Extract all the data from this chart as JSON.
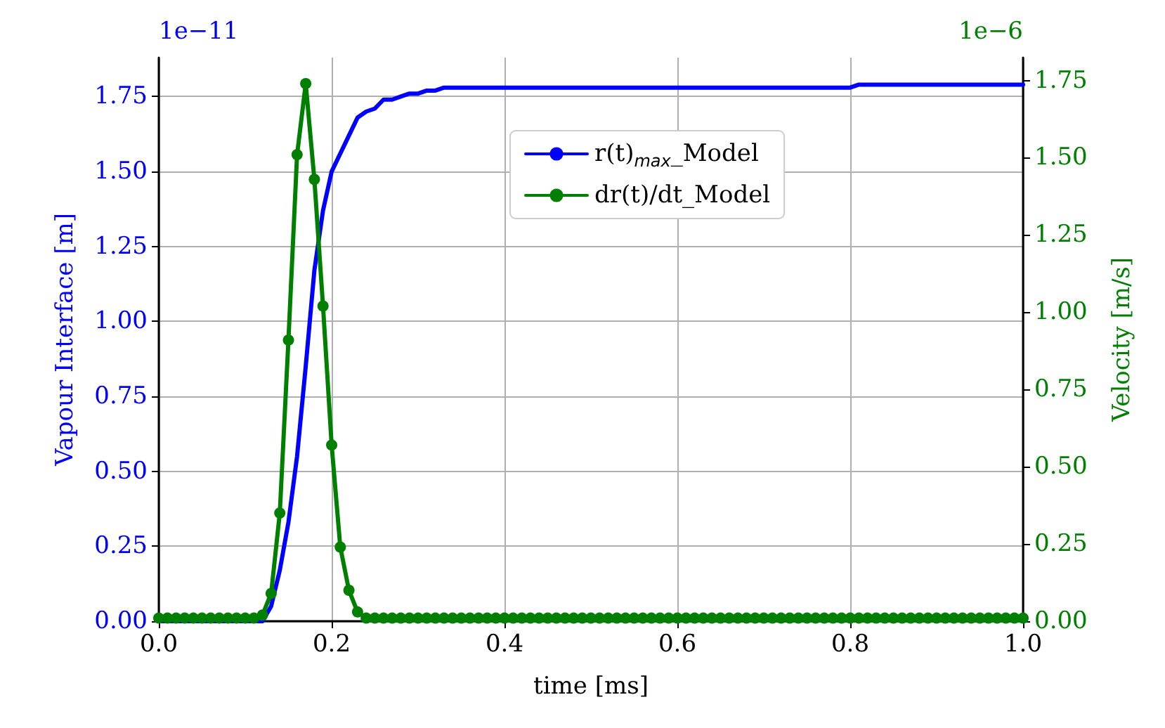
{
  "chart_data": {
    "type": "line",
    "xlabel": "time [ms]",
    "ylabel": "Vapour Interface [m]",
    "y2label": "Velocity [m/s]",
    "annotations": [
      "1e−11",
      "1e−6"
    ],
    "xlim": [
      0,
      1
    ],
    "xticks": [
      {
        "value": 0,
        "label": "0.0"
      },
      {
        "value": 0.2,
        "label": "0.2"
      },
      {
        "value": 0.4,
        "label": "0.4"
      },
      {
        "value": 0.6,
        "label": "0.6"
      },
      {
        "value": 0.8,
        "label": "0.8"
      },
      {
        "value": 1,
        "label": "1.0"
      }
    ],
    "ylim": [
      0,
      1.88
    ],
    "yticks": [
      {
        "value": 0,
        "label": "0.00"
      },
      {
        "value": 0.25,
        "label": "0.25"
      },
      {
        "value": 0.5,
        "label": "0.50"
      },
      {
        "value": 0.75,
        "label": "0.75"
      },
      {
        "value": 1,
        "label": "1.00"
      },
      {
        "value": 1.25,
        "label": "1.25"
      },
      {
        "value": 1.5,
        "label": "1.50"
      },
      {
        "value": 1.75,
        "label": "1.75"
      }
    ],
    "y2lim": [
      0,
      1.824
    ],
    "y2ticks": [
      {
        "value": 0,
        "label": "0.00"
      },
      {
        "value": 0.25,
        "label": "0.25"
      },
      {
        "value": 0.5,
        "label": "0.50"
      },
      {
        "value": 0.75,
        "label": "0.75"
      },
      {
        "value": 1,
        "label": "1.00"
      },
      {
        "value": 1.25,
        "label": "1.25"
      },
      {
        "value": 1.5,
        "label": "1.50"
      },
      {
        "value": 1.75,
        "label": "1.75"
      }
    ],
    "grid": true,
    "legend": "top",
    "line_style": "solid",
    "series": [
      {
        "name": "r(t)$_{max}$_Model",
        "color": "#0000ff",
        "marker": "none",
        "x": [
          0,
          0.12,
          0.13,
          0.14,
          0.15,
          0.16,
          0.17,
          0.18,
          0.19,
          0.2,
          0.21,
          0.22,
          0.23,
          0.24,
          0.25,
          0.26,
          0.27,
          0.28,
          0.29,
          0.3,
          0.31,
          0.32,
          0.33,
          0.8,
          0.81,
          1
        ],
        "values": [
          0,
          0,
          0.05,
          0.17,
          0.33,
          0.55,
          0.85,
          1.17,
          1.37,
          1.5,
          1.56,
          1.62,
          1.68,
          1.7,
          1.71,
          1.74,
          1.74,
          1.75,
          1.76,
          1.76,
          1.77,
          1.77,
          1.78,
          1.78,
          1.79,
          1.79
        ]
      },
      {
        "name": "dr(t)/dt_Model",
        "color": "#008000",
        "marker": "circle",
        "axis": "y2",
        "x": [
          0,
          0.01,
          0.02,
          0.03,
          0.04,
          0.05,
          0.06,
          0.07,
          0.08,
          0.09,
          0.1,
          0.11,
          0.12,
          0.13,
          0.14,
          0.15,
          0.16,
          0.17,
          0.18,
          0.19,
          0.2,
          0.21,
          0.22,
          0.23,
          0.24,
          0.25,
          0.26,
          0.27,
          0.28,
          0.29,
          0.3,
          0.31,
          0.32,
          0.33,
          0.34,
          0.35,
          0.36,
          0.37,
          0.38,
          0.39,
          0.4,
          0.41,
          0.42,
          0.43,
          0.44,
          0.45,
          0.46,
          0.47,
          0.48,
          0.49,
          0.5,
          0.51,
          0.52,
          0.53,
          0.54,
          0.55,
          0.56,
          0.57,
          0.58,
          0.59,
          0.6,
          0.61,
          0.62,
          0.63,
          0.64,
          0.65,
          0.66,
          0.67,
          0.68,
          0.69,
          0.7,
          0.71,
          0.72,
          0.73,
          0.74,
          0.75,
          0.76,
          0.77,
          0.78,
          0.79,
          0.8,
          0.81,
          0.82,
          0.83,
          0.84,
          0.85,
          0.86,
          0.87,
          0.88,
          0.89,
          0.9,
          0.91,
          0.92,
          0.93,
          0.94,
          0.95,
          0.96,
          0.97,
          0.98,
          0.99,
          1
        ],
        "values": [
          0.01,
          0.01,
          0.01,
          0.01,
          0.01,
          0.01,
          0.01,
          0.01,
          0.01,
          0.01,
          0.01,
          0.01,
          0.02,
          0.09,
          0.35,
          0.91,
          1.51,
          1.74,
          1.43,
          1.02,
          0.57,
          0.24,
          0.1,
          0.03,
          0.01,
          0.01,
          0.01,
          0.01,
          0.01,
          0.01,
          0.01,
          0.01,
          0.01,
          0.01,
          0.01,
          0.01,
          0.01,
          0.01,
          0.01,
          0.01,
          0.01,
          0.01,
          0.01,
          0.01,
          0.01,
          0.01,
          0.01,
          0.01,
          0.01,
          0.01,
          0.01,
          0.01,
          0.01,
          0.01,
          0.01,
          0.01,
          0.01,
          0.01,
          0.01,
          0.01,
          0.01,
          0.01,
          0.01,
          0.01,
          0.01,
          0.01,
          0.01,
          0.01,
          0.01,
          0.01,
          0.01,
          0.01,
          0.01,
          0.01,
          0.01,
          0.01,
          0.01,
          0.01,
          0.01,
          0.01,
          0.01,
          0.01,
          0.01,
          0.01,
          0.01,
          0.01,
          0.01,
          0.01,
          0.01,
          0.01,
          0.01,
          0.01,
          0.01,
          0.01,
          0.01,
          0.01,
          0.01,
          0.01,
          0.01,
          0.01,
          0.01
        ]
      }
    ]
  }
}
